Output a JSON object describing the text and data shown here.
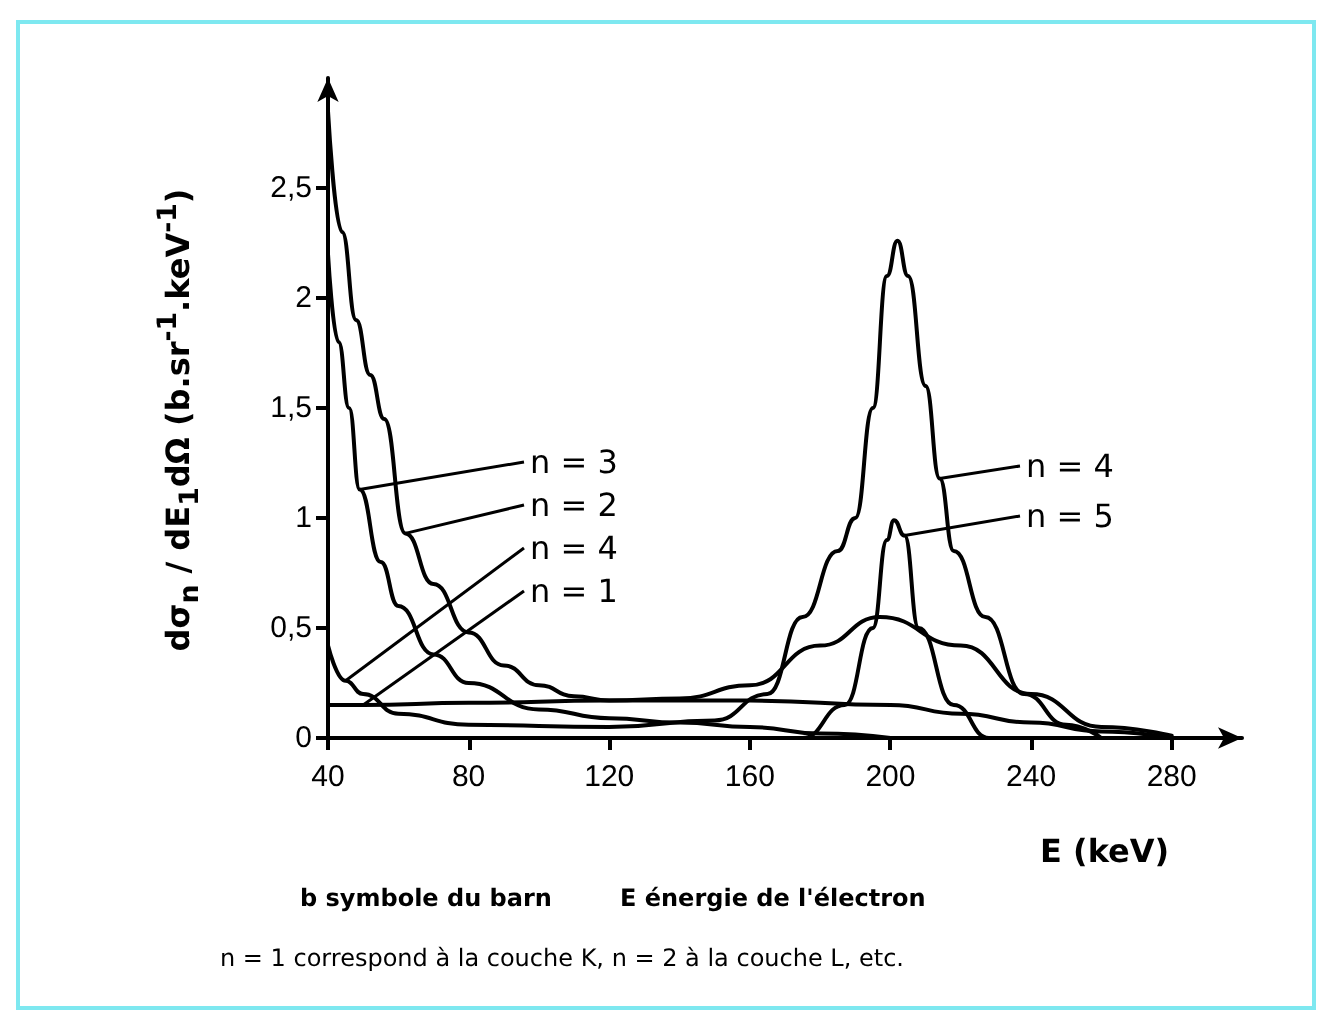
{
  "chart_data": {
    "type": "line",
    "xlabel": "E (keV)",
    "ylabel": "dσ$_{n}$ / dE$_{1}$dΩ (b.sr$^{-1}$.keV$^{-1}$)",
    "xlim": [
      40,
      300
    ],
    "xticks": [
      40,
      80,
      120,
      160,
      200,
      240,
      280
    ],
    "ylim": [
      0,
      3
    ],
    "yticks": [
      0,
      {
        "value": 0.5,
        "label": "0,5"
      },
      1,
      {
        "value": 1.5,
        "label": "1,5"
      },
      2,
      {
        "value": 2.5,
        "label": "2,5"
      }
    ],
    "grid": false,
    "marker": "none",
    "line_style": "solid",
    "series": [
      {
        "color": "#000000",
        "x": [
          40,
          44,
          48,
          52,
          56,
          62,
          70,
          80,
          90,
          100,
          110,
          120,
          140,
          160,
          180,
          197,
          220,
          240,
          260,
          280
        ],
        "values": [
          2.85,
          2.3,
          1.9,
          1.65,
          1.45,
          0.93,
          0.7,
          0.48,
          0.33,
          0.24,
          0.19,
          0.17,
          0.18,
          0.24,
          0.42,
          0.55,
          0.42,
          0.2,
          0.05,
          0.01
        ]
      },
      {
        "color": "#000000",
        "x": [
          40,
          43,
          46,
          49,
          55,
          60,
          70,
          80,
          100,
          120,
          140,
          160,
          180,
          200
        ],
        "values": [
          2.2,
          1.8,
          1.5,
          1.13,
          0.8,
          0.6,
          0.38,
          0.25,
          0.13,
          0.09,
          0.07,
          0.05,
          0.02,
          0
        ]
      },
      {
        "color": "#000000",
        "x": [
          40,
          45,
          50,
          60,
          80,
          120,
          150,
          165,
          175,
          185,
          190,
          195,
          199,
          202,
          205,
          210,
          214,
          218,
          227,
          238,
          250,
          260
        ],
        "values": [
          0.42,
          0.26,
          0.2,
          0.11,
          0.06,
          0.05,
          0.08,
          0.2,
          0.55,
          0.85,
          1.0,
          1.5,
          2.1,
          2.26,
          2.1,
          1.6,
          1.18,
          0.85,
          0.55,
          0.2,
          0.06,
          0
        ]
      },
      {
        "color": "#000000",
        "x": [
          40,
          50,
          80,
          120,
          160,
          200,
          220,
          240,
          260,
          280
        ],
        "values": [
          0.15,
          0.15,
          0.16,
          0.17,
          0.17,
          0.15,
          0.11,
          0.07,
          0.03,
          0
        ]
      },
      {
        "color": "#000000",
        "x": [
          160,
          175,
          187,
          195,
          199,
          201,
          204,
          208,
          218,
          228,
          240
        ],
        "values": [
          0,
          0,
          0.15,
          0.5,
          0.9,
          0.99,
          0.92,
          0.5,
          0.15,
          0,
          0
        ]
      }
    ],
    "annotations": [
      {
        "text": "n = 3",
        "x": 49,
        "y": 1.13
      },
      {
        "text": "n = 2",
        "x": 62,
        "y": 0.93
      },
      {
        "text": "n = 4",
        "x": 45,
        "y": 0.26
      },
      {
        "text": "n = 1",
        "x": 50,
        "y": 0.15
      },
      {
        "text": "n = 4",
        "x": 214,
        "y": 1.18
      },
      {
        "text": "n = 5",
        "x": 204,
        "y": 0.92
      },
      "b symbole du barn",
      "E énergie de l'électron",
      "n = 1 correspond à la couche K, n = 2 à la couche L, etc."
    ]
  }
}
